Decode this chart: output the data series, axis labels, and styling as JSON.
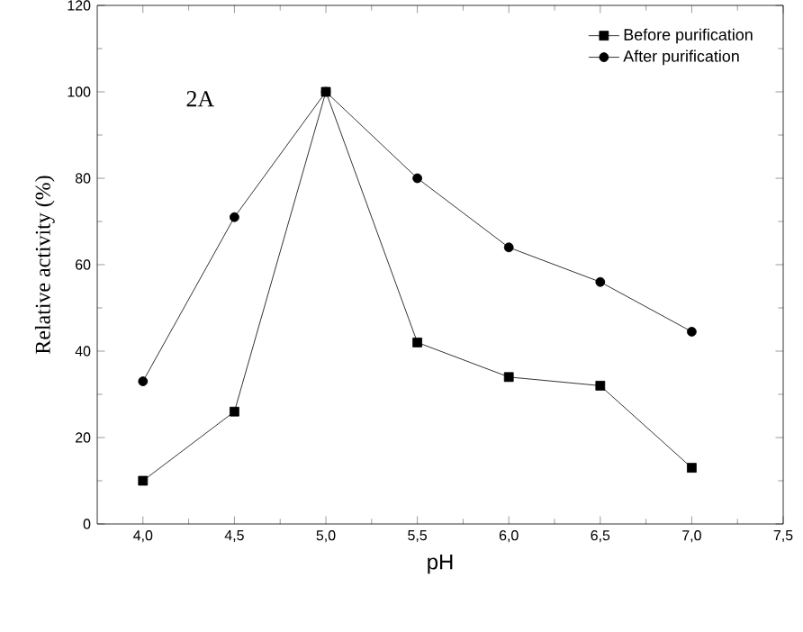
{
  "chart_data": {
    "type": "line",
    "xlabel": "pH",
    "ylabel": "Relative activity (%)",
    "annotations": [
      "2A"
    ],
    "x": [
      4.0,
      4.5,
      5.0,
      5.5,
      6.0,
      6.5,
      7.0
    ],
    "series": [
      {
        "name": "Before purification",
        "color": "#000000",
        "marker": "square",
        "values": [
          10,
          26,
          100,
          42,
          34,
          32,
          13
        ]
      },
      {
        "name": "After purification",
        "color": "#000000",
        "marker": "circle",
        "values": [
          33,
          71,
          100,
          80,
          64,
          56,
          44.5
        ]
      }
    ],
    "xlim": [
      3.75,
      7.5
    ],
    "ylim": [
      0,
      120
    ],
    "xticks": [
      {
        "value": 4.0,
        "label": "4,0"
      },
      {
        "value": 4.5,
        "label": "4,5"
      },
      {
        "value": 5.0,
        "label": "5,0"
      },
      {
        "value": 5.5,
        "label": "5,5"
      },
      {
        "value": 6.0,
        "label": "6,0"
      },
      {
        "value": 6.5,
        "label": "6,5"
      },
      {
        "value": 7.0,
        "label": "7,0"
      },
      {
        "value": 7.5,
        "label": "7,5"
      }
    ],
    "yticks": [
      0,
      20,
      40,
      60,
      80,
      100,
      120
    ],
    "legend": "top right",
    "grid": false,
    "line_style": "solid"
  }
}
